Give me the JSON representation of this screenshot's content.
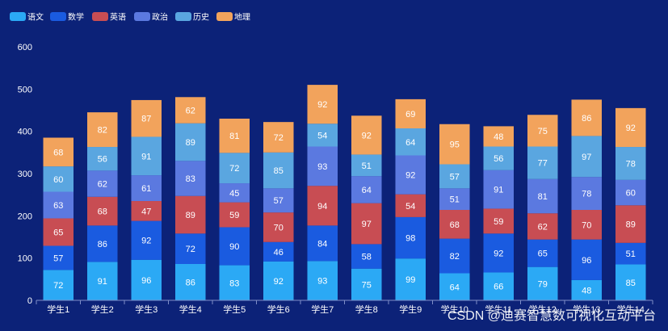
{
  "chart_data": {
    "type": "bar",
    "stacked": true,
    "categories": [
      "学生1",
      "学生2",
      "学生3",
      "学生4",
      "学生5",
      "学生6",
      "学生7",
      "学生8",
      "学生9",
      "学生10",
      "学生11",
      "学生12",
      "学生13",
      "学生14"
    ],
    "series": [
      {
        "name": "语文",
        "color": "#2ba9f5",
        "values": [
          72,
          91,
          96,
          86,
          83,
          92,
          93,
          75,
          99,
          64,
          66,
          79,
          48,
          85
        ]
      },
      {
        "name": "数学",
        "color": "#1a5be0",
        "values": [
          57,
          86,
          92,
          72,
          90,
          46,
          84,
          58,
          98,
          82,
          92,
          65,
          96,
          51
        ]
      },
      {
        "name": "英语",
        "color": "#c84d53",
        "values": [
          65,
          68,
          47,
          89,
          59,
          70,
          94,
          97,
          54,
          68,
          59,
          62,
          70,
          89
        ]
      },
      {
        "name": "政治",
        "color": "#5b79e0",
        "values": [
          63,
          62,
          61,
          83,
          45,
          57,
          93,
          64,
          92,
          51,
          91,
          81,
          78,
          60
        ]
      },
      {
        "name": "历史",
        "color": "#5aa6e0",
        "values": [
          60,
          56,
          91,
          89,
          72,
          85,
          54,
          51,
          64,
          57,
          56,
          77,
          97,
          78
        ]
      },
      {
        "name": "地理",
        "color": "#f2a35c",
        "values": [
          68,
          82,
          87,
          62,
          81,
          72,
          92,
          92,
          69,
          95,
          48,
          75,
          86,
          92
        ]
      }
    ],
    "ylim": [
      0,
      600
    ],
    "yticks": [
      0,
      100,
      200,
      300,
      400,
      500,
      600
    ],
    "xlabel": "",
    "ylabel": "",
    "grid": false,
    "legend_position": "top-left"
  },
  "watermark": "CSDN @迪赛智慧数可视化互动平台"
}
